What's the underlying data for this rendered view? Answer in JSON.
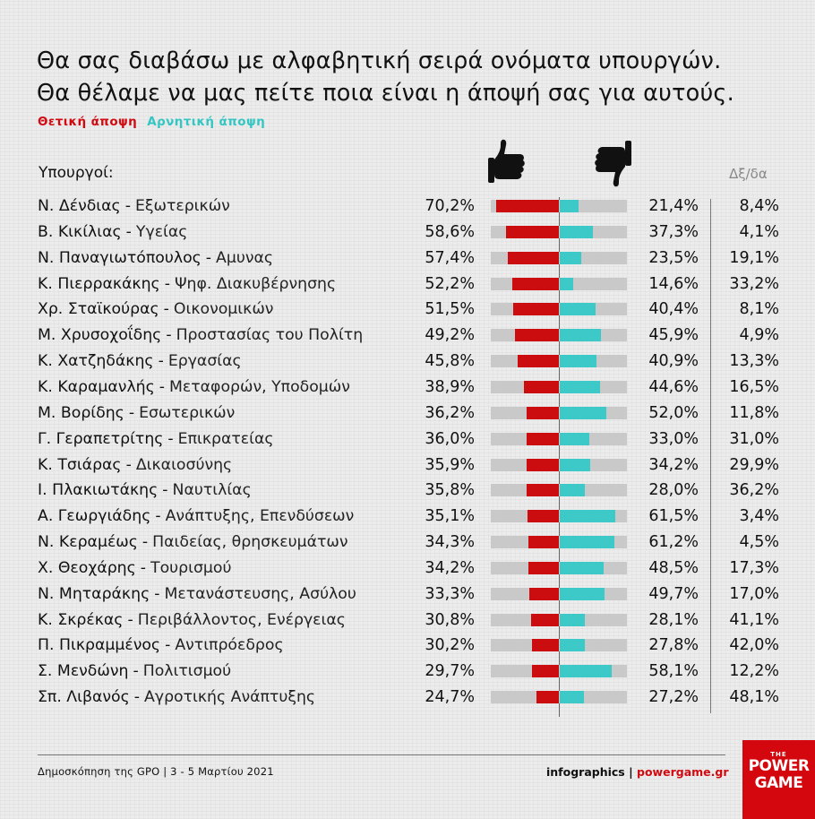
{
  "title": {
    "line1": "Θα σας διαβάσω με αλφαβητική σειρά ονόματα υπουργών.",
    "line2": "Θα θέλαμε να μας πείτε ποια είναι η άποψή σας για αυτούς."
  },
  "legend": {
    "positive": "Θετική άποψη",
    "negative": "Αρνητική άποψη"
  },
  "headers": {
    "ministers": "Υπουργοί:",
    "dk": "Δξ/δα"
  },
  "icons": {
    "positive": "thumbs-up-icon",
    "negative": "thumbs-down-icon"
  },
  "colors": {
    "positive": "#cc0d10",
    "negative": "#3cc9c8",
    "track": "#c9c9c9",
    "brand": "#d4070e"
  },
  "footer": {
    "source": "Δημοσκόπηση της GPO |  3 - 5 Μαρτίου 2021",
    "credit_prefix": "infographics | ",
    "credit_brand": "powergame.gr",
    "logo_top": "THE",
    "logo_l1": "POWER",
    "logo_l2": "GAME"
  },
  "chart_data": {
    "type": "bar",
    "orientation": "diverging-horizontal",
    "series": [
      {
        "name": "Θετική άποψη",
        "values": [
          70.2,
          58.6,
          57.4,
          52.2,
          51.5,
          49.2,
          45.8,
          38.9,
          36.2,
          36.0,
          35.9,
          35.8,
          35.1,
          34.3,
          34.2,
          33.3,
          30.8,
          30.2,
          29.7,
          24.7
        ]
      },
      {
        "name": "Αρνητική άποψη",
        "values": [
          21.4,
          37.3,
          23.5,
          14.6,
          40.4,
          45.9,
          40.9,
          44.6,
          52.0,
          33.0,
          34.2,
          28.0,
          61.5,
          61.2,
          48.5,
          49.7,
          28.1,
          27.8,
          58.1,
          27.2
        ]
      },
      {
        "name": "Δξ/δα",
        "values": [
          8.4,
          4.1,
          19.1,
          33.2,
          8.1,
          4.9,
          13.3,
          16.5,
          11.8,
          31.0,
          29.9,
          36.2,
          3.4,
          4.5,
          17.3,
          17.0,
          41.1,
          42.0,
          12.2,
          48.1
        ]
      }
    ],
    "rows": [
      {
        "name": "Ν. Δένδιας",
        "ministry": "Εξωτερικών",
        "pos": "70,2%",
        "neg": "21,4%",
        "dk": "8,4%"
      },
      {
        "name": "Β. Κικίλιας",
        "ministry": "Υγείας",
        "pos": "58,6%",
        "neg": "37,3%",
        "dk": "4,1%"
      },
      {
        "name": "Ν. Παναγιωτόπουλος",
        "ministry": "Αμυνας",
        "pos": "57,4%",
        "neg": "23,5%",
        "dk": "19,1%"
      },
      {
        "name": "Κ. Πιερρακάκης",
        "ministry": "Ψηφ. Διακυβέρνησης",
        "pos": "52,2%",
        "neg": "14,6%",
        "dk": "33,2%"
      },
      {
        "name": "Χρ. Σταϊκούρας",
        "ministry": "Οικονομικών",
        "pos": "51,5%",
        "neg": "40,4%",
        "dk": "8,1%"
      },
      {
        "name": "Μ. Χρυσοχοΐδης",
        "ministry": "Προστασίας του Πολίτη",
        "pos": "49,2%",
        "neg": "45,9%",
        "dk": "4,9%"
      },
      {
        "name": "Κ. Χατζηδάκης",
        "ministry": "Εργασίας",
        "pos": "45,8%",
        "neg": "40,9%",
        "dk": "13,3%"
      },
      {
        "name": "Κ. Καραμανλής",
        "ministry": "Μεταφορών, Υποδομών",
        "pos": "38,9%",
        "neg": "44,6%",
        "dk": "16,5%"
      },
      {
        "name": "Μ. Βορίδης",
        "ministry": "Εσωτερικών",
        "pos": "36,2%",
        "neg": "52,0%",
        "dk": "11,8%"
      },
      {
        "name": "Γ. Γεραπετρίτης",
        "ministry": "Επικρατείας",
        "pos": "36,0%",
        "neg": "33,0%",
        "dk": "31,0%"
      },
      {
        "name": "Κ. Τσιάρας",
        "ministry": "Δικαιοσύνης",
        "pos": "35,9%",
        "neg": "34,2%",
        "dk": "29,9%"
      },
      {
        "name": "Ι. Πλακιωτάκης",
        "ministry": "Ναυτιλίας",
        "pos": "35,8%",
        "neg": "28,0%",
        "dk": "36,2%"
      },
      {
        "name": "Α. Γεωργιάδης",
        "ministry": "Ανάπτυξης, Επενδύσεων",
        "pos": "35,1%",
        "neg": "61,5%",
        "dk": "3,4%"
      },
      {
        "name": "Ν. Κεραμέως",
        "ministry": "Παιδείας, θρησκευμάτων",
        "pos": "34,3%",
        "neg": "61,2%",
        "dk": "4,5%"
      },
      {
        "name": "Χ. Θεοχάρης",
        "ministry": "Τουρισμού",
        "pos": "34,2%",
        "neg": "48,5%",
        "dk": "17,3%"
      },
      {
        "name": "Ν. Μηταράκης",
        "ministry": "Μετανάστευσης, Ασύλου",
        "pos": "33,3%",
        "neg": "49,7%",
        "dk": "17,0%"
      },
      {
        "name": "Κ. Σκρέκας",
        "ministry": "Περιβάλλοντος, Ενέργειας",
        "pos": "30,8%",
        "neg": "28,1%",
        "dk": "41,1%"
      },
      {
        "name": "Π. Πικραμμένος",
        "ministry": "Αντιπρόεδρος",
        "pos": "30,2%",
        "neg": "27,8%",
        "dk": "42,0%"
      },
      {
        "name": "Σ. Μενδώνη",
        "ministry": "Πολιτισμού",
        "pos": "29,7%",
        "neg": "58,1%",
        "dk": "12,2%"
      },
      {
        "name": "Σπ. Λιβανός",
        "ministry": "Αγροτικής Ανάπτυξης",
        "pos": "24,7%",
        "neg": "27,2%",
        "dk": "48,1%"
      }
    ]
  }
}
